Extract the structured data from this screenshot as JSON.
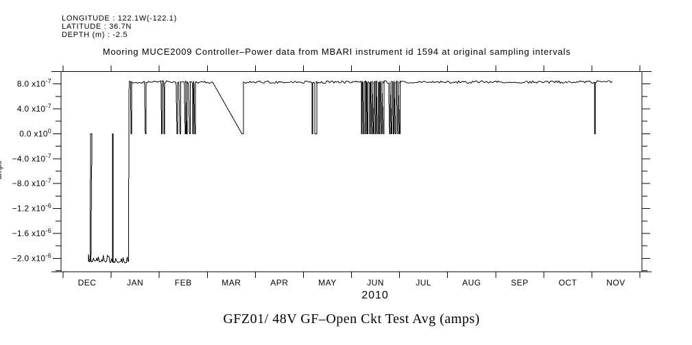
{
  "header": {
    "longitude": "LONGITUDE : 122.1W(-122.1)",
    "latitude": "LATITUDE : 36.7N",
    "depth": "DEPTH (m) : -2.5"
  },
  "plot": {
    "title": "Mooring MUCE2009 Controller–Power data from MBARI instrument id 1594 at original sampling intervals",
    "x_axis_year": "2010",
    "y_axis_unit": "amps",
    "footer_title": "GFZ01/ 48V GF–Open Ckt Test Avg (amps)",
    "background_color": "#ffffff",
    "line_color": "#000000"
  },
  "chart_data": {
    "type": "line",
    "title": "Mooring MUCE2009 Controller–Power data from MBARI instrument id 1594 at original sampling intervals",
    "xlabel": "2010",
    "ylabel": "amps",
    "x_categories": [
      "DEC",
      "JAN",
      "FEB",
      "MAR",
      "APR",
      "MAY",
      "JUN",
      "JUL",
      "AUG",
      "SEP",
      "OCT",
      "NOV"
    ],
    "x_unit": "fractional month index, 0 = start of DEC 2009 band, 12 = end of NOV 2010 band",
    "ylim": [
      -2.26e-06,
      1.06e-06
    ],
    "grid": false,
    "legend_position": "none",
    "y_major_ticks": [
      {
        "value": 8e-07,
        "mantissa": "8.0",
        "exponent": "-7"
      },
      {
        "value": 4e-07,
        "mantissa": "4.0",
        "exponent": "-7"
      },
      {
        "value": 0,
        "mantissa": "0.0",
        "exponent": "0"
      },
      {
        "value": -4e-07,
        "mantissa": "−4.0",
        "exponent": "-7"
      },
      {
        "value": -8e-07,
        "mantissa": "−8.0",
        "exponent": "-7"
      },
      {
        "value": -1.2e-06,
        "mantissa": "−1.2",
        "exponent": "-6"
      },
      {
        "value": -1.6e-06,
        "mantissa": "−1.6",
        "exponent": "-6"
      },
      {
        "value": -2e-06,
        "mantissa": "−2.0",
        "exponent": "-6"
      }
    ],
    "y_minor_step": 2e-07,
    "series": [
      {
        "name": "GFZ01/ 48V GF-Open Ckt Test Avg",
        "color": "#000000",
        "high_value": 8.3e-07,
        "low_value": -2.05e-06,
        "zero_value": 0,
        "low_band": {
          "start_month": 0.53,
          "end_month": 1.36,
          "spikes_to_zero_months": [
            0.57,
            1.03
          ],
          "thick_spike_month": 0.57
        },
        "diagonal_drop": {
          "start_month": 3.11,
          "reach_zero_month": 3.72,
          "recover_month": 3.75
        },
        "dips_to_zero_months": [
          1.41,
          1.71,
          2.05,
          2.1,
          2.37,
          2.43,
          2.54,
          2.57,
          2.63,
          2.7,
          2.74,
          5.18,
          5.24,
          6.21,
          6.25,
          6.29,
          6.33,
          6.38,
          6.42,
          6.46,
          6.5,
          6.54,
          6.58,
          6.62,
          6.66,
          6.79,
          6.83,
          6.87,
          6.91,
          6.96,
          7.0,
          11.06
        ],
        "wide_dip_month": 5.24,
        "end_month": 11.43
      }
    ]
  }
}
